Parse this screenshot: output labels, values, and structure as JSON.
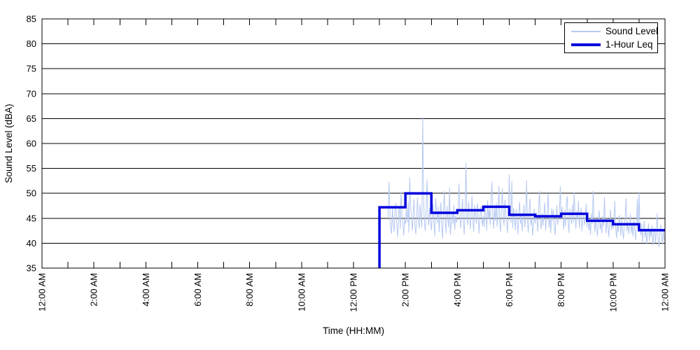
{
  "chart_data": {
    "type": "line",
    "title": "",
    "xlabel": "Time (HH:MM)",
    "ylabel": "Sound Level (dBA)",
    "ylim": [
      35,
      85
    ],
    "ytick_step": 5,
    "ytick_labels": [
      "35",
      "40",
      "45",
      "50",
      "55",
      "60",
      "65",
      "70",
      "75",
      "80",
      "85"
    ],
    "x_hours_range": [
      0,
      24
    ],
    "xtick_minor_every_hours": 1,
    "xticks": [
      {
        "hour": 0,
        "label": "12:00 AM"
      },
      {
        "hour": 2,
        "label": "2:00 AM"
      },
      {
        "hour": 4,
        "label": "4:00 AM"
      },
      {
        "hour": 6,
        "label": "6:00 AM"
      },
      {
        "hour": 8,
        "label": "8:00 AM"
      },
      {
        "hour": 10,
        "label": "10:00 AM"
      },
      {
        "hour": 12,
        "label": "12:00 PM"
      },
      {
        "hour": 14,
        "label": "2:00 PM"
      },
      {
        "hour": 16,
        "label": "4:00 PM"
      },
      {
        "hour": 18,
        "label": "6:00 PM"
      },
      {
        "hour": 20,
        "label": "8:00 PM"
      },
      {
        "hour": 22,
        "label": "10:00 PM"
      },
      {
        "hour": 24,
        "label": "12:00 AM"
      }
    ],
    "grid": "horizontal-solid-black",
    "legend": {
      "position": "top-right",
      "items": [
        {
          "label": "Sound Level",
          "color": "#b6c9f2",
          "weight": "thin"
        },
        {
          "label": "1-Hour Leq",
          "color": "#0000dd",
          "weight": "thick"
        }
      ]
    },
    "series": [
      {
        "name": "Sound Level",
        "style": "raw-trace",
        "color": "#b6c9f2",
        "start_min": 800,
        "step_min": 2,
        "values": [
          45.2,
          52.3,
          46.8,
          43.1,
          41.9,
          47.2,
          44.0,
          42.3,
          46.5,
          48.1,
          43.6,
          41.2,
          45.8,
          47.5,
          42.8,
          50.4,
          46.2,
          43.9,
          41.5,
          44.7,
          43.8,
          46.9,
          44.2,
          48.3,
          42.1,
          53.2,
          47.6,
          44.9,
          42.5,
          46.1,
          48.8,
          43.4,
          41.8,
          45.6,
          49.2,
          44.5,
          42.9,
          47.8,
          45.1,
          43.2,
          65.3,
          48.6,
          44.1,
          42.4,
          46.7,
          52.8,
          45.9,
          43.5,
          47.1,
          44.8,
          42.6,
          45.3,
          47.9,
          43.7,
          41.4,
          49.0,
          46.4,
          44.0,
          47.3,
          42.2,
          45.7,
          48.2,
          43.3,
          40.9,
          46.8,
          50.5,
          44.6,
          42.0,
          47.5,
          45.0,
          43.1,
          51.2,
          41.6,
          44.3,
          46.0,
          43.8,
          47.7,
          42.7,
          45.5,
          44.1,
          44.9,
          47.2,
          52.0,
          45.6,
          43.0,
          46.5,
          48.9,
          44.2,
          41.7,
          47.0,
          56.2,
          45.4,
          43.6,
          48.4,
          46.1,
          42.8,
          45.9,
          49.5,
          44.4,
          42.3,
          47.6,
          45.2,
          43.9,
          48.0,
          46.6,
          41.9,
          44.7,
          47.4,
          45.8,
          43.4,
          45.5,
          43.2,
          47.8,
          46.0,
          42.5,
          48.6,
          44.8,
          46.9,
          43.7,
          49.3,
          52.3,
          45.1,
          42.9,
          47.3,
          44.5,
          48.1,
          43.3,
          46.3,
          51.5,
          44.0,
          42.2,
          47.9,
          51.0,
          45.7,
          43.5,
          48.8,
          46.2,
          44.3,
          42.0,
          46.7,
          53.8,
          46.4,
          44.1,
          52.5,
          43.0,
          47.1,
          45.3,
          42.6,
          46.8,
          44.7,
          41.8,
          45.9,
          48.3,
          43.8,
          46.1,
          42.4,
          44.9,
          47.7,
          43.2,
          45.6,
          52.6,
          44.4,
          42.1,
          46.6,
          48.9,
          43.6,
          45.2,
          41.5,
          44.0,
          46.9,
          43.9,
          46.2,
          44.6,
          42.3,
          47.4,
          50.5,
          44.2,
          42.8,
          46.0,
          43.5,
          45.8,
          48.2,
          42.5,
          44.8,
          46.5,
          50.0,
          43.1,
          45.4,
          42.0,
          47.0,
          44.5,
          46.8,
          43.3,
          41.6,
          45.1,
          47.6,
          43.7,
          44.9,
          46.3,
          51.5,
          44.7,
          47.3,
          45.0,
          42.7,
          46.6,
          43.4,
          48.0,
          49.4,
          44.3,
          42.1,
          46.9,
          45.6,
          43.8,
          47.8,
          44.1,
          50.2,
          45.9,
          42.9,
          46.4,
          44.6,
          48.5,
          43.0,
          45.3,
          47.1,
          42.4,
          44.9,
          46.1,
          43.6,
          45.7,
          47.9,
          43.2,
          45.8,
          42.5,
          44.4,
          41.7,
          46.0,
          43.9,
          50.5,
          44.7,
          42.2,
          45.3,
          43.0,
          41.4,
          44.8,
          46.6,
          42.8,
          44.1,
          41.9,
          45.5,
          43.4,
          49.2,
          44.6,
          42.0,
          45.0,
          43.7,
          41.2,
          44.2,
          46.8,
          42.6,
          44.5,
          42.9,
          44.6,
          48.5,
          43.3,
          41.0,
          44.0,
          42.2,
          45.6,
          43.8,
          41.5,
          44.9,
          42.6,
          40.8,
          43.5,
          45.2,
          49.0,
          42.4,
          44.3,
          41.8,
          43.1,
          45.9,
          42.0,
          43.9,
          41.3,
          44.7,
          42.8,
          40.6,
          43.6,
          48.9,
          42.3,
          50.3,
          43.4,
          41.6,
          43.9,
          40.2,
          42.7,
          44.5,
          41.1,
          43.0,
          39.8,
          42.1,
          44.0,
          40.5,
          42.9,
          41.3,
          43.6,
          39.5,
          41.8,
          43.2,
          40.0,
          42.4,
          46.0,
          40.9,
          39.2,
          42.0,
          43.7,
          41.5,
          39.9,
          42.6,
          40.7
        ]
      },
      {
        "name": "1-Hour Leq",
        "style": "step",
        "color": "#0000dd",
        "start_hour": 13,
        "end_hour": 24,
        "hourly_leq": [
          47.2,
          50.0,
          46.1,
          46.6,
          47.3,
          45.7,
          45.4,
          45.9,
          44.5,
          43.8,
          42.6
        ]
      }
    ]
  }
}
